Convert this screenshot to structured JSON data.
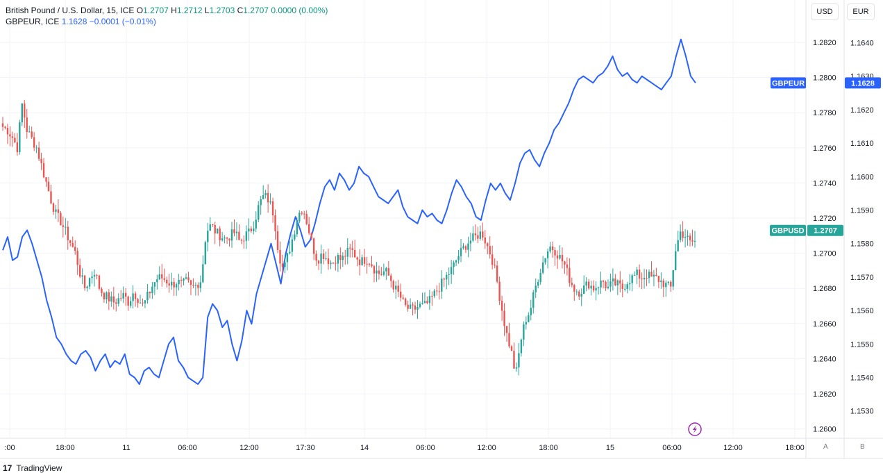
{
  "legend": {
    "main_name": "British Pound / U.S. Dollar, 15, ICE",
    "o_label": "O",
    "o_value": "1.2707",
    "h_label": "H",
    "h_value": "1.2712",
    "l_label": "L",
    "l_value": "1.2703",
    "c_label": "C",
    "c_value": "1.2707",
    "change": "0.0000 (0.00%)",
    "compare_name": "GBPEUR, ICE",
    "compare_value": "1.1628",
    "compare_change": "−0.0001 (−0.01%)"
  },
  "buttons": {
    "usd": "USD",
    "eur": "EUR"
  },
  "axis_tags": {
    "left": "A",
    "right": "B"
  },
  "branding": {
    "logo_mark": "17",
    "logo_text": "TradingView"
  },
  "colors": {
    "up": "#26a69a",
    "down": "#ef5350",
    "compare": "#2962ff",
    "grid": "#f0f3fa",
    "axis_text": "#131722"
  },
  "icons": {
    "lightning": "lightning-icon"
  },
  "chart_data": {
    "type": "candlestick",
    "title": "British Pound / U.S. Dollar, 15, ICE",
    "x_ticks": [
      ":00",
      "18:00",
      "11",
      "06:00",
      "12:00",
      "17:30",
      "14",
      "06:00",
      "12:00",
      "18:00",
      "15",
      "06:00",
      "12:00",
      "18:00"
    ],
    "left_axis": {
      "currency": "USD",
      "ylim": [
        1.2597,
        1.2835
      ],
      "ticks": [
        "1.2820",
        "1.2800",
        "1.2780",
        "1.2760",
        "1.2740",
        "1.2720",
        "1.2700",
        "1.2680",
        "1.2660",
        "1.2640",
        "1.2620",
        "1.2600"
      ]
    },
    "right_axis": {
      "currency": "EUR",
      "ylim": [
        1.15266,
        1.16478
      ],
      "ticks": [
        "1.1640",
        "1.1630",
        "1.1620",
        "1.1610",
        "1.1600",
        "1.1590",
        "1.1580",
        "1.1570",
        "1.1560",
        "1.1550",
        "1.1540",
        "1.1530"
      ]
    },
    "series": [
      {
        "name": "GBPUSD",
        "axis": "left",
        "last": "1.2707",
        "close_path": [
          1.2772,
          1.277,
          1.2766,
          1.276,
          1.2785,
          1.277,
          1.2765,
          1.276,
          1.275,
          1.274,
          1.273,
          1.2722,
          1.2718,
          1.2712,
          1.2706,
          1.27,
          1.2688,
          1.268,
          1.2686,
          1.269,
          1.268,
          1.2676,
          1.2674,
          1.2672,
          1.2674,
          1.2676,
          1.2672,
          1.2678,
          1.2674,
          1.267,
          1.2676,
          1.2682,
          1.2686,
          1.2686,
          1.2684,
          1.2682,
          1.2684,
          1.2682,
          1.2684,
          1.268,
          1.2682,
          1.2685,
          1.2712,
          1.2716,
          1.2712,
          1.271,
          1.2708,
          1.271,
          1.2712,
          1.2706,
          1.271,
          1.2712,
          1.2718,
          1.2728,
          1.2733,
          1.273,
          1.2722,
          1.27,
          1.269,
          1.27,
          1.271,
          1.2722,
          1.2726,
          1.2716,
          1.2704,
          1.2696,
          1.27,
          1.2697,
          1.2694,
          1.2698,
          1.2696,
          1.27,
          1.2702,
          1.2698,
          1.2695,
          1.2697,
          1.2695,
          1.269,
          1.2688,
          1.269,
          1.2686,
          1.268,
          1.2676,
          1.267,
          1.2668,
          1.2668,
          1.267,
          1.267,
          1.2672,
          1.2676,
          1.268,
          1.2684,
          1.2688,
          1.2692,
          1.2698,
          1.2702,
          1.2706,
          1.2708,
          1.271,
          1.2712,
          1.2705,
          1.2698,
          1.2686,
          1.267,
          1.2655,
          1.2645,
          1.263,
          1.265,
          1.2662,
          1.2668,
          1.268,
          1.269,
          1.2698,
          1.2704,
          1.2702,
          1.2698,
          1.2694,
          1.2686,
          1.268,
          1.2678,
          1.268,
          1.2683,
          1.268,
          1.2682,
          1.2684,
          1.268,
          1.2683,
          1.2682,
          1.268,
          1.2684,
          1.2686,
          1.2688,
          1.2686,
          1.2688,
          1.2686,
          1.2686,
          1.2684,
          1.2682,
          1.268,
          1.2702,
          1.2712,
          1.271,
          1.2706,
          1.2707
        ]
      },
      {
        "name": "GBPEUR",
        "axis": "right",
        "last": "1.1628",
        "values": [
          1.1578,
          1.1582,
          1.1575,
          1.1576,
          1.1582,
          1.1584,
          1.158,
          1.1575,
          1.157,
          1.1563,
          1.1558,
          1.1552,
          1.155,
          1.1547,
          1.1545,
          1.1544,
          1.1547,
          1.1548,
          1.1546,
          1.1542,
          1.1545,
          1.1547,
          1.1543,
          1.1545,
          1.1544,
          1.1547,
          1.1541,
          1.154,
          1.1538,
          1.1542,
          1.1543,
          1.1541,
          1.154,
          1.1545,
          1.155,
          1.1552,
          1.1545,
          1.1543,
          1.154,
          1.1539,
          1.1538,
          1.154,
          1.1558,
          1.1562,
          1.156,
          1.1555,
          1.1557,
          1.155,
          1.1545,
          1.1551,
          1.156,
          1.1556,
          1.1565,
          1.157,
          1.1575,
          1.158,
          1.1574,
          1.1568,
          1.1577,
          1.1583,
          1.1588,
          1.1584,
          1.1579,
          1.1581,
          1.1586,
          1.1592,
          1.1597,
          1.1599,
          1.1596,
          1.1601,
          1.1599,
          1.1596,
          1.1598,
          1.1603,
          1.1601,
          1.16,
          1.1597,
          1.1594,
          1.1593,
          1.1592,
          1.1594,
          1.1596,
          1.1591,
          1.1588,
          1.1587,
          1.1586,
          1.159,
          1.1588,
          1.1589,
          1.1587,
          1.1586,
          1.159,
          1.1595,
          1.1599,
          1.1597,
          1.1594,
          1.1592,
          1.1588,
          1.1587,
          1.1593,
          1.1598,
          1.1596,
          1.1598,
          1.1595,
          1.1593,
          1.1598,
          1.1604,
          1.1607,
          1.1608,
          1.1605,
          1.1603,
          1.1607,
          1.161,
          1.1614,
          1.1616,
          1.1619,
          1.1622,
          1.1626,
          1.1629,
          1.163,
          1.1629,
          1.1628,
          1.163,
          1.1631,
          1.1633,
          1.1636,
          1.1632,
          1.163,
          1.1631,
          1.1629,
          1.1628,
          1.163,
          1.1629,
          1.1628,
          1.1627,
          1.1626,
          1.1628,
          1.163,
          1.1636,
          1.1641,
          1.1636,
          1.163,
          1.1628
        ]
      }
    ],
    "grid": true,
    "legend_position": "top-left"
  }
}
